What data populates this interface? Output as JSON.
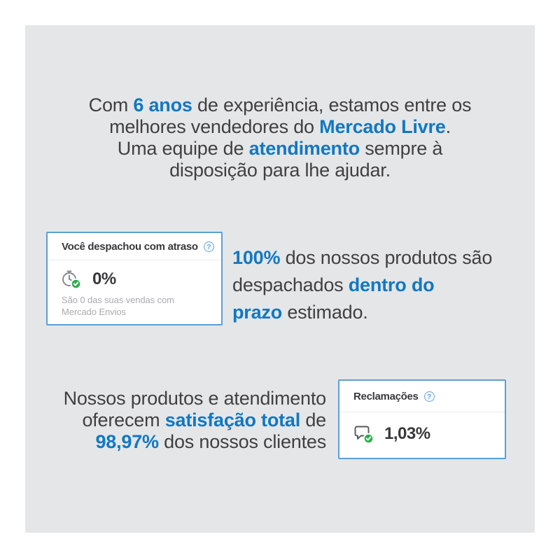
{
  "colors": {
    "page_bg": "#ffffff",
    "canvas_bg": "#e5e6e8",
    "accent_blue": "#1178c2",
    "text_dark": "#404042",
    "card_border": "#5c9fd6",
    "divider_gray": "#ebebeb",
    "muted_gray": "#a9abad",
    "check_green": "#2cae4c",
    "help_blue": "#6aa7dc",
    "icon_gray": "#84878a"
  },
  "icons": {
    "help_glyph": "?"
  },
  "intro": {
    "lines": [
      [
        {
          "t": "Com "
        },
        {
          "t": "6 anos",
          "hl": true
        },
        {
          "t": " de experiência, estamos entre os"
        }
      ],
      [
        {
          "t": "melhores vendedores do "
        },
        {
          "t": "Mercado Livre",
          "hl": true
        },
        {
          "t": "."
        }
      ],
      [
        {
          "t": "Uma equipe de "
        },
        {
          "t": "atendimento",
          "hl": true
        },
        {
          "t": " sempre à"
        }
      ],
      [
        {
          "t": "disposição para lhe ajudar."
        }
      ]
    ]
  },
  "card_shipping": {
    "title": "Você despachou com atraso",
    "value": "0%",
    "subtext": "São 0 das suas vendas com Mercado Envios"
  },
  "shipping_text": {
    "lines": [
      [
        {
          "t": "100%",
          "hl": true
        },
        {
          "t": " dos nossos produtos são"
        }
      ],
      [
        {
          "t": "despachados "
        },
        {
          "t": "dentro do",
          "hl": true
        }
      ],
      [
        {
          "t": "prazo",
          "hl": true
        },
        {
          "t": " estimado."
        }
      ]
    ]
  },
  "satisfaction_text": {
    "lines": [
      [
        {
          "t": "Nossos produtos e atendimento"
        }
      ],
      [
        {
          "t": "oferecem "
        },
        {
          "t": "satisfação total",
          "hl": true
        },
        {
          "t": " de"
        }
      ],
      [
        {
          "t": "98,97%",
          "hl": true
        },
        {
          "t": " dos nossos clientes"
        }
      ]
    ]
  },
  "card_claims": {
    "title": "Reclamações",
    "value": "1,03%"
  }
}
